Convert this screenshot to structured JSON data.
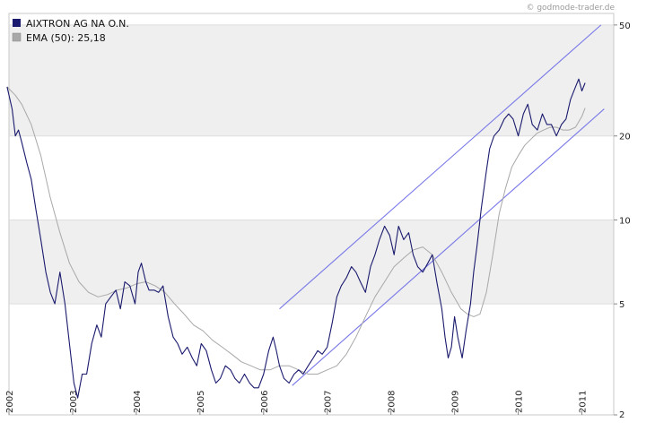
{
  "chart_data": {
    "type": "line",
    "credit": "© godmode-trader.de",
    "y_scale": "log",
    "ylim": [
      2,
      55
    ],
    "xlim": [
      2002.0,
      2011.5
    ],
    "y_ticks": [
      {
        "value": 50,
        "label": "50"
      },
      {
        "value": 20,
        "label": "20"
      },
      {
        "value": 10,
        "label": "10"
      },
      {
        "value": 5,
        "label": "5"
      },
      {
        "value": 2,
        "label": "2"
      }
    ],
    "x_ticks": [
      {
        "value": 2002,
        "label": "2002"
      },
      {
        "value": 2003,
        "label": "2003"
      },
      {
        "value": 2004,
        "label": "2004"
      },
      {
        "value": 2005,
        "label": "2005"
      },
      {
        "value": 2006,
        "label": "2006"
      },
      {
        "value": 2007,
        "label": "2007"
      },
      {
        "value": 2008,
        "label": "2008"
      },
      {
        "value": 2009,
        "label": "2009"
      },
      {
        "value": 2010,
        "label": "2010"
      },
      {
        "value": 2011,
        "label": "2011"
      }
    ],
    "series": [
      {
        "name": "AIXTRON AG NA O.N.",
        "color": "#1a1a6e",
        "x": [
          2001.97,
          2002.05,
          2002.1,
          2002.15,
          2002.2,
          2002.28,
          2002.35,
          2002.42,
          2002.5,
          2002.58,
          2002.65,
          2002.72,
          2002.8,
          2002.88,
          2002.95,
          2003.02,
          2003.08,
          2003.15,
          2003.22,
          2003.3,
          2003.38,
          2003.45,
          2003.52,
          2003.6,
          2003.68,
          2003.75,
          2003.82,
          2003.9,
          2003.98,
          2004.03,
          2004.08,
          2004.15,
          2004.2,
          2004.28,
          2004.35,
          2004.42,
          2004.5,
          2004.58,
          2004.65,
          2004.72,
          2004.8,
          2004.88,
          2004.95,
          2005.02,
          2005.1,
          2005.18,
          2005.25,
          2005.32,
          2005.4,
          2005.48,
          2005.55,
          2005.62,
          2005.7,
          2005.78,
          2005.85,
          2005.92,
          2006.0,
          2006.08,
          2006.15,
          2006.2,
          2006.25,
          2006.32,
          2006.4,
          2006.48,
          2006.55,
          2006.62,
          2006.7,
          2006.78,
          2006.85,
          2006.92,
          2007.0,
          2007.08,
          2007.15,
          2007.22,
          2007.3,
          2007.38,
          2007.45,
          2007.52,
          2007.6,
          2007.68,
          2007.75,
          2007.82,
          2007.9,
          2007.98,
          2008.05,
          2008.12,
          2008.2,
          2008.28,
          2008.35,
          2008.42,
          2008.5,
          2008.58,
          2008.65,
          2008.72,
          2008.8,
          2008.85,
          2008.9,
          2008.95,
          2009.0,
          2009.05,
          2009.12,
          2009.18,
          2009.25,
          2009.3,
          2009.35,
          2009.42,
          2009.5,
          2009.55,
          2009.62,
          2009.7,
          2009.78,
          2009.85,
          2009.92,
          2010.0,
          2010.08,
          2010.15,
          2010.22,
          2010.3,
          2010.38,
          2010.45,
          2010.52,
          2010.6,
          2010.68,
          2010.75,
          2010.82,
          2010.9,
          2010.95,
          2011.0,
          2011.05
        ],
        "y": [
          30,
          25,
          20,
          21,
          19,
          16,
          14,
          11,
          8.5,
          6.5,
          5.5,
          5.0,
          6.5,
          5.0,
          3.6,
          2.6,
          2.3,
          2.8,
          2.8,
          3.6,
          4.2,
          3.8,
          5.0,
          5.3,
          5.6,
          4.8,
          6.0,
          5.8,
          5.0,
          6.5,
          7.0,
          6.0,
          5.6,
          5.6,
          5.5,
          5.8,
          4.5,
          3.8,
          3.6,
          3.3,
          3.5,
          3.2,
          3.0,
          3.6,
          3.4,
          2.9,
          2.6,
          2.7,
          3.0,
          2.9,
          2.7,
          2.6,
          2.8,
          2.6,
          2.5,
          2.5,
          2.8,
          3.4,
          3.8,
          3.4,
          3.0,
          2.7,
          2.6,
          2.8,
          2.9,
          2.8,
          3.0,
          3.2,
          3.4,
          3.3,
          3.5,
          4.3,
          5.3,
          5.8,
          6.2,
          6.8,
          6.5,
          6.0,
          5.5,
          6.8,
          7.5,
          8.5,
          9.5,
          8.8,
          7.5,
          9.5,
          8.5,
          9.0,
          7.5,
          6.8,
          6.5,
          7.0,
          7.5,
          6.0,
          4.8,
          3.8,
          3.2,
          3.5,
          4.5,
          3.8,
          3.2,
          4.0,
          5.0,
          6.5,
          8.0,
          11,
          15,
          18,
          20,
          21,
          23,
          24,
          23,
          20,
          24,
          26,
          22,
          21,
          24,
          22,
          22,
          20,
          22,
          23,
          27,
          30,
          32,
          29,
          31
        ],
        "width": 1.1
      },
      {
        "name": "EMA (50)",
        "legend_value": "25,18",
        "color": "#a8a8a8",
        "x": [
          2001.97,
          2002.1,
          2002.2,
          2002.35,
          2002.5,
          2002.65,
          2002.8,
          2002.95,
          2003.1,
          2003.25,
          2003.4,
          2003.55,
          2003.7,
          2003.85,
          2004.0,
          2004.15,
          2004.3,
          2004.45,
          2004.6,
          2004.75,
          2004.9,
          2005.05,
          2005.2,
          2005.35,
          2005.5,
          2005.65,
          2005.8,
          2005.95,
          2006.1,
          2006.25,
          2006.4,
          2006.55,
          2006.7,
          2006.85,
          2007.0,
          2007.15,
          2007.3,
          2007.45,
          2007.6,
          2007.75,
          2007.9,
          2008.05,
          2008.2,
          2008.35,
          2008.5,
          2008.65,
          2008.8,
          2008.95,
          2009.1,
          2009.2,
          2009.3,
          2009.4,
          2009.5,
          2009.6,
          2009.7,
          2009.8,
          2009.9,
          2010.0,
          2010.1,
          2010.2,
          2010.3,
          2010.4,
          2010.5,
          2010.6,
          2010.7,
          2010.8,
          2010.9,
          2011.0,
          2011.05
        ],
        "y": [
          30,
          28,
          26,
          22,
          17,
          12,
          9.0,
          7.0,
          6.0,
          5.5,
          5.3,
          5.4,
          5.6,
          5.7,
          5.9,
          6.0,
          5.8,
          5.5,
          5.0,
          4.6,
          4.2,
          4.0,
          3.7,
          3.5,
          3.3,
          3.1,
          3.0,
          2.9,
          2.9,
          3.0,
          3.0,
          2.9,
          2.8,
          2.8,
          2.9,
          3.0,
          3.3,
          3.8,
          4.5,
          5.3,
          6.0,
          6.8,
          7.3,
          7.8,
          8.0,
          7.5,
          6.5,
          5.5,
          4.8,
          4.6,
          4.5,
          4.6,
          5.5,
          7.5,
          10.5,
          13,
          15.5,
          17,
          18.5,
          19.5,
          20.5,
          21,
          21.5,
          21.5,
          21,
          21,
          21.5,
          23.5,
          25.18
        ],
        "width": 1.0
      }
    ],
    "trend_lines": [
      {
        "name": "upper-channel-line",
        "x": [
          2006.25,
          2011.3
        ],
        "y": [
          4.8,
          50
        ],
        "color": "#7878e8"
      },
      {
        "name": "lower-channel-line",
        "x": [
          2006.45,
          2011.35
        ],
        "y": [
          2.55,
          25
        ],
        "color": "#7878e8"
      }
    ]
  }
}
